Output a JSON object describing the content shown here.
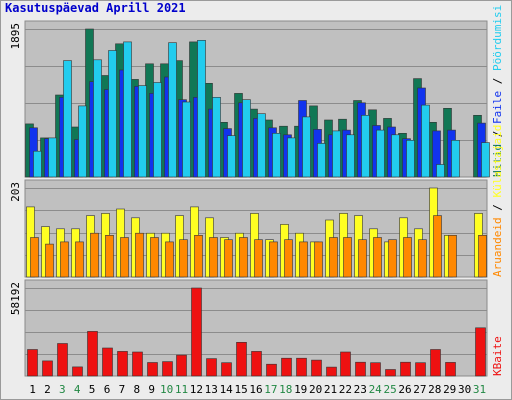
{
  "title": "Kasutuspäevad Aprill 2021",
  "colors": {
    "weekday": "#000000",
    "weekend": "#228844",
    "hits": "#117755",
    "files": "#1133ee",
    "pages": "#22ccee",
    "visits": "#ffff22",
    "sites": "#ff8800",
    "kbytes": "#ee1111"
  },
  "chart_data": [
    {
      "type": "bar",
      "ylabel_max": "1895",
      "right_labels": [
        "Hitid",
        "Faile",
        "Pöördumisi"
      ],
      "categories": [
        "1",
        "2",
        "3",
        "4",
        "5",
        "6",
        "7",
        "8",
        "9",
        "10",
        "11",
        "12",
        "13",
        "14",
        "15",
        "16",
        "17",
        "18",
        "19",
        "20",
        "21",
        "22",
        "23",
        "24",
        "25",
        "26",
        "27",
        "28",
        "29",
        "30",
        "31"
      ],
      "weekend_days": [
        "3",
        "4",
        "10",
        "11",
        "17",
        "18",
        "24",
        "25",
        "31"
      ],
      "ylim": [
        0,
        1895
      ],
      "series": [
        {
          "name": "Hitid",
          "values": [
            680,
            500,
            1050,
            640,
            1895,
            1300,
            1705,
            1250,
            1450,
            1450,
            1490,
            1730,
            1200,
            700,
            1070,
            870,
            730,
            650,
            650,
            910,
            730,
            740,
            980,
            860,
            750,
            560,
            1260,
            700,
            880,
            0,
            790
          ]
        },
        {
          "name": "Faile",
          "values": [
            630,
            490,
            1020,
            480,
            1220,
            1120,
            1370,
            1160,
            1070,
            1280,
            990,
            1020,
            870,
            620,
            950,
            750,
            630,
            540,
            980,
            610,
            540,
            600,
            950,
            660,
            640,
            490,
            1140,
            590,
            600,
            0,
            690
          ]
        },
        {
          "name": "Pöördumisi",
          "values": [
            330,
            500,
            1490,
            910,
            1500,
            1620,
            1730,
            1170,
            1210,
            1720,
            960,
            1750,
            1020,
            530,
            990,
            810,
            560,
            500,
            770,
            430,
            590,
            540,
            790,
            600,
            540,
            470,
            920,
            160,
            470,
            0,
            440
          ]
        }
      ]
    },
    {
      "type": "bar",
      "ylabel_max": "203",
      "right_labels": [
        "Aruandeid",
        "Külastajaid"
      ],
      "categories": [
        "1",
        "2",
        "3",
        "4",
        "5",
        "6",
        "7",
        "8",
        "9",
        "10",
        "11",
        "12",
        "13",
        "14",
        "15",
        "16",
        "17",
        "18",
        "19",
        "20",
        "21",
        "22",
        "23",
        "24",
        "25",
        "26",
        "27",
        "28",
        "29",
        "30",
        "31"
      ],
      "weekend_days": [
        "3",
        "4",
        "10",
        "11",
        "17",
        "18",
        "24",
        "25",
        "31"
      ],
      "ylim": [
        0,
        203
      ],
      "series": [
        {
          "name": "Külastajaid",
          "values": [
            160,
            115,
            110,
            110,
            140,
            145,
            155,
            135,
            100,
            100,
            140,
            160,
            135,
            90,
            100,
            145,
            85,
            120,
            100,
            80,
            130,
            145,
            140,
            110,
            80,
            135,
            110,
            203,
            95,
            0,
            145
          ]
        },
        {
          "name": "Aruandeid",
          "values": [
            90,
            75,
            80,
            80,
            100,
            95,
            90,
            100,
            90,
            80,
            85,
            95,
            90,
            85,
            90,
            85,
            80,
            85,
            80,
            80,
            90,
            90,
            85,
            90,
            85,
            90,
            85,
            140,
            95,
            0,
            95
          ]
        }
      ]
    },
    {
      "type": "bar",
      "ylabel_max": "58192",
      "right_labels": [
        "KBaite"
      ],
      "categories": [
        "1",
        "2",
        "3",
        "4",
        "5",
        "6",
        "7",
        "8",
        "9",
        "10",
        "11",
        "12",
        "13",
        "14",
        "15",
        "16",
        "17",
        "18",
        "19",
        "20",
        "21",
        "22",
        "23",
        "24",
        "25",
        "26",
        "27",
        "28",
        "29",
        "30",
        "31"
      ],
      "weekend_days": [
        "3",
        "4",
        "10",
        "11",
        "17",
        "18",
        "24",
        "25",
        "31"
      ],
      "ylim": [
        0,
        58192
      ],
      "series": [
        {
          "name": "KBaite",
          "values": [
            17500,
            10000,
            21500,
            6000,
            29500,
            18500,
            16300,
            15900,
            8900,
            9500,
            13800,
            58192,
            11500,
            8800,
            22300,
            16300,
            7800,
            11800,
            11800,
            10500,
            5900,
            15900,
            9100,
            8800,
            4300,
            9100,
            8800,
            17500,
            9000,
            0,
            31900
          ]
        }
      ]
    }
  ]
}
